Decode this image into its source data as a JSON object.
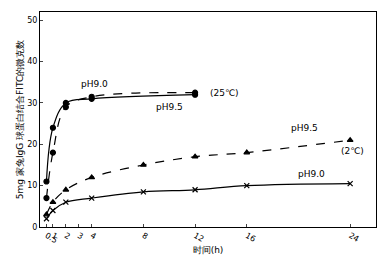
{
  "chart_data": {
    "type": "line",
    "x_label": "时间(h)",
    "y_label": "5mg 家兔IgG 球蛋白结合FITC的微克数",
    "xlim": [
      0,
      26
    ],
    "xticks": [
      0.5,
      1,
      2,
      3,
      4,
      8,
      12,
      16,
      24
    ],
    "ylim": [
      0,
      52
    ],
    "yticks": [
      0,
      10,
      20,
      30,
      40,
      50
    ],
    "grid": false,
    "series": [
      {
        "color": "#000000",
        "line_style": "solid",
        "marker": "circle",
        "x": [
          0.5,
          1,
          2,
          4,
          12
        ],
        "values": [
          11,
          24,
          30,
          31,
          32
        ]
      },
      {
        "color": "#000000",
        "line_style": "dashed",
        "marker": "circle",
        "x": [
          0.5,
          1,
          2,
          4,
          12
        ],
        "values": [
          7,
          18,
          29,
          31.5,
          32.5
        ]
      },
      {
        "color": "#000000",
        "line_style": "dashed",
        "marker": "triangle",
        "x": [
          0.5,
          1,
          2,
          4,
          8,
          12,
          16,
          24
        ],
        "values": [
          3,
          6,
          9,
          12,
          15,
          17,
          18,
          21
        ]
      },
      {
        "color": "#000000",
        "line_style": "solid",
        "marker": "x",
        "x": [
          0.5,
          1,
          2,
          4,
          8,
          12,
          16,
          24
        ],
        "values": [
          2,
          4,
          6,
          7,
          8.5,
          9,
          10,
          10.5
        ]
      }
    ],
    "annotations": [
      {
        "text": "pH9.0",
        "x": 4.2,
        "y": 34.5
      },
      {
        "text": "(25℃)",
        "x": 14.3,
        "y": 32.5
      },
      {
        "text": "pH9.5",
        "x": 10,
        "y": 29
      },
      {
        "text": "pH9.5",
        "x": 20.5,
        "y": 24
      },
      {
        "text": "(2℃)",
        "x": 24.2,
        "y": 18.5
      },
      {
        "text": "pH9.0",
        "x": 21,
        "y": 12.8
      }
    ]
  }
}
